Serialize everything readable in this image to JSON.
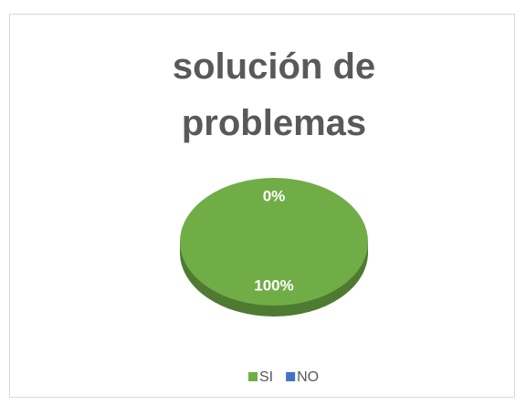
{
  "chart_data": {
    "type": "pie",
    "title": "solución de problemas",
    "categories": [
      "SI",
      "NO"
    ],
    "values": [
      100,
      0
    ],
    "value_labels": [
      "100%",
      "0%"
    ],
    "colors": [
      "#70ad47",
      "#4472c4"
    ],
    "legend": "bottom"
  }
}
